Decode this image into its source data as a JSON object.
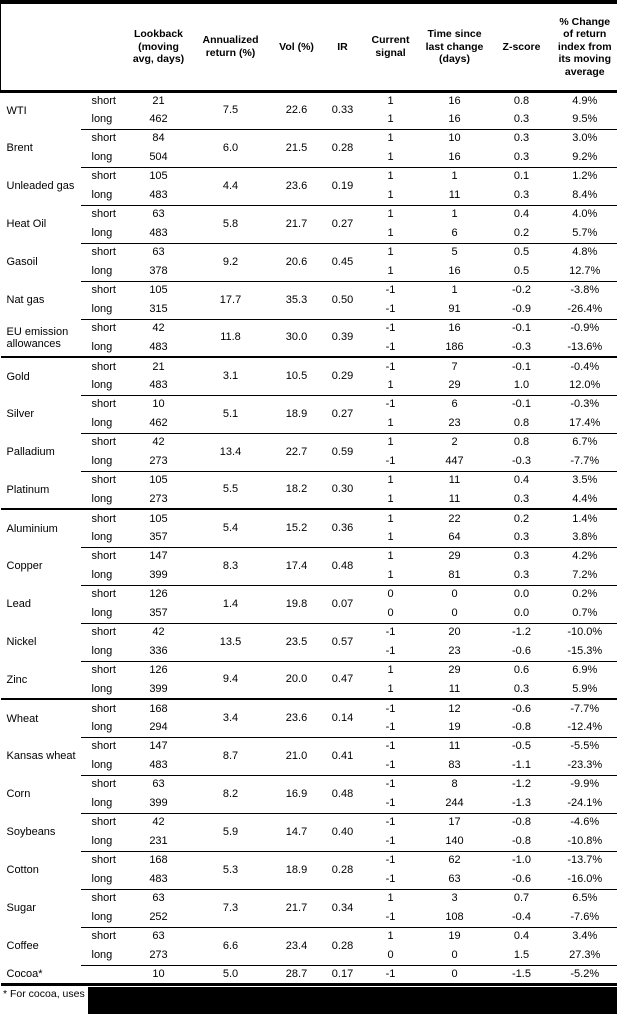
{
  "table": {
    "header": {
      "commodity": "",
      "side": "",
      "lookback": "Lookback (moving avg, days)",
      "annualized_return": "Annualized return (%)",
      "vol": "Vol (%)",
      "ir": "IR",
      "current_signal": "Current signal",
      "time_since": "Time since last change (days)",
      "z_score": "Z-score",
      "pct_change": "% Change of return index from its moving average"
    },
    "side_labels": {
      "short": "short",
      "long": "long"
    },
    "groups": [
      {
        "name": "WTI",
        "ret": "7.5",
        "vol": "22.6",
        "ir": "0.33",
        "short": {
          "lookback": "21",
          "signal": "1",
          "time": "16",
          "z": "0.8",
          "chg": "4.9%"
        },
        "long": {
          "lookback": "462",
          "signal": "1",
          "time": "16",
          "z": "0.3",
          "chg": "9.5%"
        }
      },
      {
        "name": "Brent",
        "ret": "6.0",
        "vol": "21.5",
        "ir": "0.28",
        "short": {
          "lookback": "84",
          "signal": "1",
          "time": "10",
          "z": "0.3",
          "chg": "3.0%"
        },
        "long": {
          "lookback": "504",
          "signal": "1",
          "time": "16",
          "z": "0.3",
          "chg": "9.2%"
        }
      },
      {
        "name": "Unleaded gas",
        "ret": "4.4",
        "vol": "23.6",
        "ir": "0.19",
        "short": {
          "lookback": "105",
          "signal": "1",
          "time": "1",
          "z": "0.1",
          "chg": "1.2%"
        },
        "long": {
          "lookback": "483",
          "signal": "1",
          "time": "11",
          "z": "0.3",
          "chg": "8.4%"
        }
      },
      {
        "name": "Heat Oil",
        "ret": "5.8",
        "vol": "21.7",
        "ir": "0.27",
        "short": {
          "lookback": "63",
          "signal": "1",
          "time": "1",
          "z": "0.4",
          "chg": "4.0%"
        },
        "long": {
          "lookback": "483",
          "signal": "1",
          "time": "6",
          "z": "0.2",
          "chg": "5.7%"
        }
      },
      {
        "name": "Gasoil",
        "ret": "9.2",
        "vol": "20.6",
        "ir": "0.45",
        "short": {
          "lookback": "63",
          "signal": "1",
          "time": "5",
          "z": "0.5",
          "chg": "4.8%"
        },
        "long": {
          "lookback": "378",
          "signal": "1",
          "time": "16",
          "z": "0.5",
          "chg": "12.7%"
        }
      },
      {
        "name": "Nat gas",
        "ret": "17.7",
        "vol": "35.3",
        "ir": "0.50",
        "short": {
          "lookback": "105",
          "signal": "-1",
          "time": "1",
          "z": "-0.2",
          "chg": "-3.8%"
        },
        "long": {
          "lookback": "315",
          "signal": "-1",
          "time": "91",
          "z": "-0.9",
          "chg": "-26.4%"
        }
      },
      {
        "name": "EU emission allowances",
        "ret": "11.8",
        "vol": "30.0",
        "ir": "0.39",
        "short": {
          "lookback": "42",
          "signal": "-1",
          "time": "16",
          "z": "-0.1",
          "chg": "-0.9%"
        },
        "long": {
          "lookback": "483",
          "signal": "-1",
          "time": "186",
          "z": "-0.3",
          "chg": "-13.6%"
        }
      },
      {
        "name": "Gold",
        "section": true,
        "ret": "3.1",
        "vol": "10.5",
        "ir": "0.29",
        "short": {
          "lookback": "21",
          "signal": "-1",
          "time": "7",
          "z": "-0.1",
          "chg": "-0.4%"
        },
        "long": {
          "lookback": "483",
          "signal": "1",
          "time": "29",
          "z": "1.0",
          "chg": "12.0%"
        }
      },
      {
        "name": "Silver",
        "ret": "5.1",
        "vol": "18.9",
        "ir": "0.27",
        "short": {
          "lookback": "10",
          "signal": "-1",
          "time": "6",
          "z": "-0.1",
          "chg": "-0.3%"
        },
        "long": {
          "lookback": "462",
          "signal": "1",
          "time": "23",
          "z": "0.8",
          "chg": "17.4%"
        }
      },
      {
        "name": "Palladium",
        "ret": "13.4",
        "vol": "22.7",
        "ir": "0.59",
        "short": {
          "lookback": "42",
          "signal": "1",
          "time": "2",
          "z": "0.8",
          "chg": "6.7%"
        },
        "long": {
          "lookback": "273",
          "signal": "-1",
          "time": "447",
          "z": "-0.3",
          "chg": "-7.7%"
        }
      },
      {
        "name": "Platinum",
        "ret": "5.5",
        "vol": "18.2",
        "ir": "0.30",
        "short": {
          "lookback": "105",
          "signal": "1",
          "time": "11",
          "z": "0.4",
          "chg": "3.5%"
        },
        "long": {
          "lookback": "273",
          "signal": "1",
          "time": "11",
          "z": "0.3",
          "chg": "4.4%"
        }
      },
      {
        "name": "Aluminium",
        "section": true,
        "ret": "5.4",
        "vol": "15.2",
        "ir": "0.36",
        "short": {
          "lookback": "105",
          "signal": "1",
          "time": "22",
          "z": "0.2",
          "chg": "1.4%"
        },
        "long": {
          "lookback": "357",
          "signal": "1",
          "time": "64",
          "z": "0.3",
          "chg": "3.8%"
        }
      },
      {
        "name": "Copper",
        "ret": "8.3",
        "vol": "17.4",
        "ir": "0.48",
        "short": {
          "lookback": "147",
          "signal": "1",
          "time": "29",
          "z": "0.3",
          "chg": "4.2%"
        },
        "long": {
          "lookback": "399",
          "signal": "1",
          "time": "81",
          "z": "0.3",
          "chg": "7.2%"
        }
      },
      {
        "name": "Lead",
        "ret": "1.4",
        "vol": "19.8",
        "ir": "0.07",
        "short": {
          "lookback": "126",
          "signal": "0",
          "time": "0",
          "z": "0.0",
          "chg": "0.2%"
        },
        "long": {
          "lookback": "357",
          "signal": "0",
          "time": "0",
          "z": "0.0",
          "chg": "0.7%"
        }
      },
      {
        "name": "Nickel",
        "ret": "13.5",
        "vol": "23.5",
        "ir": "0.57",
        "short": {
          "lookback": "42",
          "signal": "-1",
          "time": "20",
          "z": "-1.2",
          "chg": "-10.0%"
        },
        "long": {
          "lookback": "336",
          "signal": "-1",
          "time": "23",
          "z": "-0.6",
          "chg": "-15.3%"
        }
      },
      {
        "name": "Zinc",
        "ret": "9.4",
        "vol": "20.0",
        "ir": "0.47",
        "short": {
          "lookback": "126",
          "signal": "1",
          "time": "29",
          "z": "0.6",
          "chg": "6.9%"
        },
        "long": {
          "lookback": "399",
          "signal": "1",
          "time": "11",
          "z": "0.3",
          "chg": "5.9%"
        }
      },
      {
        "name": "Wheat",
        "section": true,
        "ret": "3.4",
        "vol": "23.6",
        "ir": "0.14",
        "short": {
          "lookback": "168",
          "signal": "-1",
          "time": "12",
          "z": "-0.6",
          "chg": "-7.7%"
        },
        "long": {
          "lookback": "294",
          "signal": "-1",
          "time": "19",
          "z": "-0.8",
          "chg": "-12.4%"
        }
      },
      {
        "name": "Kansas wheat",
        "ret": "8.7",
        "vol": "21.0",
        "ir": "0.41",
        "short": {
          "lookback": "147",
          "signal": "-1",
          "time": "11",
          "z": "-0.5",
          "chg": "-5.5%"
        },
        "long": {
          "lookback": "483",
          "signal": "-1",
          "time": "83",
          "z": "-1.1",
          "chg": "-23.3%"
        }
      },
      {
        "name": "Corn",
        "ret": "8.2",
        "vol": "16.9",
        "ir": "0.48",
        "short": {
          "lookback": "63",
          "signal": "-1",
          "time": "8",
          "z": "-1.2",
          "chg": "-9.9%"
        },
        "long": {
          "lookback": "399",
          "signal": "-1",
          "time": "244",
          "z": "-1.3",
          "chg": "-24.1%"
        }
      },
      {
        "name": "Soybeans",
        "ret": "5.9",
        "vol": "14.7",
        "ir": "0.40",
        "short": {
          "lookback": "42",
          "signal": "-1",
          "time": "17",
          "z": "-0.8",
          "chg": "-4.6%"
        },
        "long": {
          "lookback": "231",
          "signal": "-1",
          "time": "140",
          "z": "-0.8",
          "chg": "-10.8%"
        }
      },
      {
        "name": "Cotton",
        "ret": "5.3",
        "vol": "18.9",
        "ir": "0.28",
        "short": {
          "lookback": "168",
          "signal": "-1",
          "time": "62",
          "z": "-1.0",
          "chg": "-13.7%"
        },
        "long": {
          "lookback": "483",
          "signal": "-1",
          "time": "63",
          "z": "-0.6",
          "chg": "-16.0%"
        }
      },
      {
        "name": "Sugar",
        "ret": "7.3",
        "vol": "21.7",
        "ir": "0.34",
        "short": {
          "lookback": "63",
          "signal": "1",
          "time": "3",
          "z": "0.7",
          "chg": "6.5%"
        },
        "long": {
          "lookback": "252",
          "signal": "-1",
          "time": "108",
          "z": "-0.4",
          "chg": "-7.6%"
        }
      },
      {
        "name": "Coffee",
        "ret": "6.6",
        "vol": "23.4",
        "ir": "0.28",
        "short": {
          "lookback": "63",
          "signal": "1",
          "time": "19",
          "z": "0.4",
          "chg": "3.4%"
        },
        "long": {
          "lookback": "273",
          "signal": "0",
          "time": "0",
          "z": "1.5",
          "chg": "27.3%"
        }
      },
      {
        "name": "Cocoa*",
        "single": true,
        "ret": "5.0",
        "vol": "28.7",
        "ir": "0.17",
        "row": {
          "lookback": "10",
          "signal": "-1",
          "time": "0",
          "z": "-1.5",
          "chg": "-5.2%"
        }
      }
    ],
    "footnote": "* For cocoa, uses c"
  }
}
